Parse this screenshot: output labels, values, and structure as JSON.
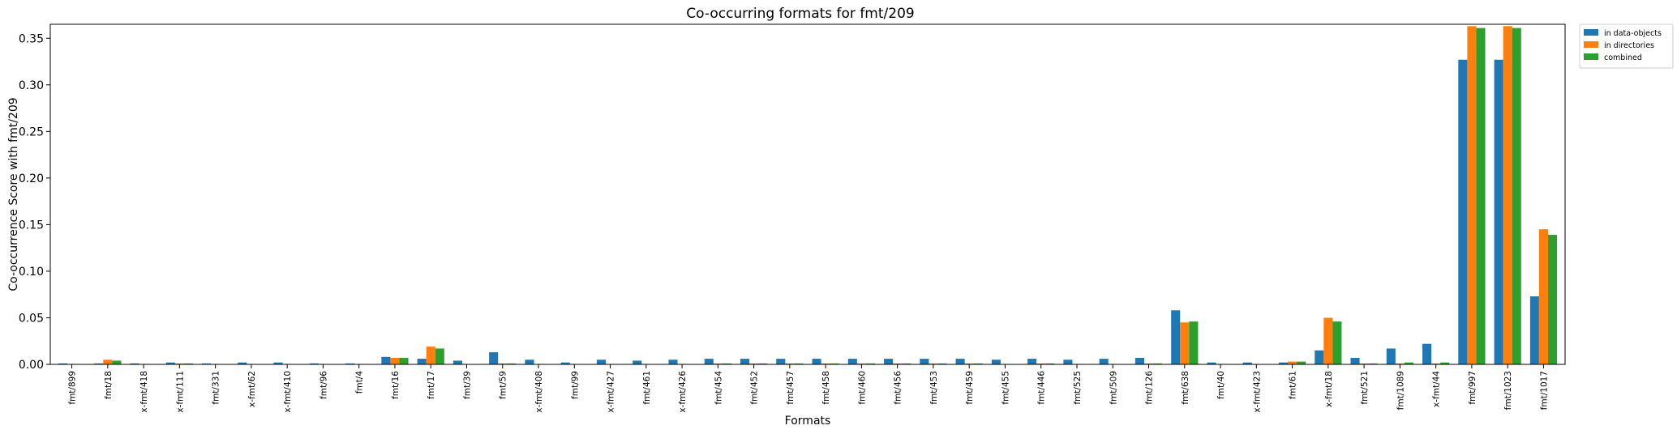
{
  "chart_data": {
    "type": "bar",
    "title": "Co-occurring formats for fmt/209",
    "xlabel": "Formats",
    "ylabel": "Co-occurrence Score with fmt/209",
    "ylim": [
      0,
      0.365
    ],
    "yticks": [
      0.0,
      0.05,
      0.1,
      0.15,
      0.2,
      0.25,
      0.3,
      0.35
    ],
    "ytick_labels": [
      "0.00",
      "0.05",
      "0.10",
      "0.15",
      "0.20",
      "0.25",
      "0.30",
      "0.35"
    ],
    "grid": false,
    "legend_position": "outside-top-right",
    "categories": [
      "fmt/899",
      "fmt/18",
      "x-fmt/418",
      "x-fmt/111",
      "fmt/331",
      "x-fmt/62",
      "x-fmt/410",
      "fmt/96",
      "fmt/4",
      "fmt/16",
      "fmt/17",
      "fmt/39",
      "fmt/59",
      "x-fmt/408",
      "fmt/99",
      "x-fmt/427",
      "fmt/461",
      "x-fmt/426",
      "fmt/454",
      "fmt/452",
      "fmt/457",
      "fmt/458",
      "fmt/460",
      "fmt/456",
      "fmt/453",
      "fmt/459",
      "fmt/455",
      "fmt/446",
      "fmt/525",
      "fmt/509",
      "fmt/126",
      "fmt/638",
      "fmt/40",
      "x-fmt/423",
      "fmt/61",
      "x-fmt/18",
      "fmt/521",
      "fmt/1089",
      "x-fmt/44",
      "fmt/997",
      "fmt/1023",
      "fmt/1017"
    ],
    "series": [
      {
        "name": "in data-objects",
        "color": "#1f77b4",
        "values": [
          0.001,
          0.001,
          0.001,
          0.002,
          0.001,
          0.002,
          0.002,
          0.001,
          0.001,
          0.008,
          0.006,
          0.004,
          0.013,
          0.005,
          0.002,
          0.005,
          0.004,
          0.005,
          0.006,
          0.006,
          0.006,
          0.006,
          0.006,
          0.006,
          0.006,
          0.006,
          0.005,
          0.006,
          0.005,
          0.006,
          0.007,
          0.058,
          0.002,
          0.002,
          0.002,
          0.015,
          0.007,
          0.017,
          0.022,
          0.327,
          0.327,
          0.073
        ]
      },
      {
        "name": "in directories",
        "color": "#ff7f0e",
        "values": [
          0.0,
          0.005,
          0.0,
          0.001,
          0.0,
          0.0,
          0.0,
          0.0,
          0.0,
          0.007,
          0.019,
          0.0,
          0.001,
          0.0,
          0.0,
          0.0,
          0.0,
          0.0,
          0.001,
          0.001,
          0.001,
          0.001,
          0.001,
          0.001,
          0.001,
          0.001,
          0.0,
          0.001,
          0.0,
          0.0,
          0.001,
          0.045,
          0.0,
          0.0,
          0.003,
          0.05,
          0.001,
          0.001,
          0.001,
          0.363,
          0.363,
          0.145
        ]
      },
      {
        "name": "combined",
        "color": "#2ca02c",
        "values": [
          0.0,
          0.004,
          0.0,
          0.001,
          0.0,
          0.0,
          0.0,
          0.0,
          0.0,
          0.007,
          0.017,
          0.0,
          0.001,
          0.0,
          0.0,
          0.0,
          0.0,
          0.0,
          0.001,
          0.001,
          0.001,
          0.001,
          0.001,
          0.001,
          0.001,
          0.001,
          0.0,
          0.001,
          0.0,
          0.0,
          0.001,
          0.046,
          0.0,
          0.0,
          0.003,
          0.046,
          0.001,
          0.002,
          0.002,
          0.361,
          0.361,
          0.139
        ]
      }
    ]
  }
}
